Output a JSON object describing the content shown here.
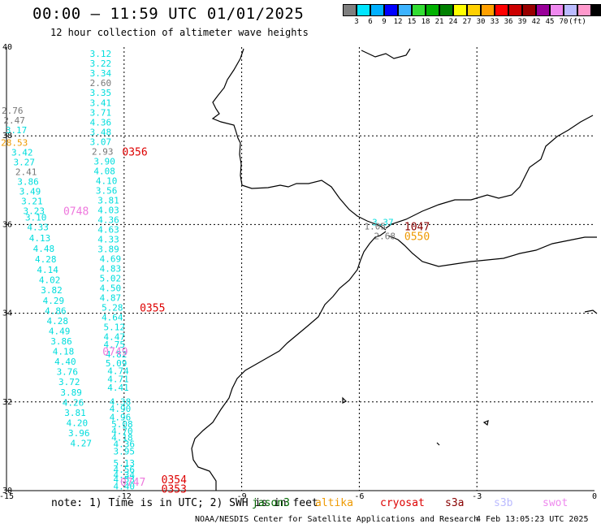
{
  "title": "00:00 – 11:59 UTC 01/01/2025",
  "subtitle": "12 hour collection of altimeter wave heights",
  "colorbar": {
    "colors": [
      "#7f7f7f",
      "#00e5ff",
      "#00b0ff",
      "#0000ff",
      "#3cb3ff",
      "#33dd33",
      "#00b000",
      "#008000",
      "#ffff00",
      "#ffd000",
      "#ffa000",
      "#ff0000",
      "#cc0000",
      "#990000",
      "#990099",
      "#ee88ee",
      "#bbbbff",
      "#ff99cc",
      "#000000"
    ],
    "labels": [
      "3",
      "6",
      "9",
      "12",
      "15",
      "18",
      "21",
      "24",
      "27",
      "30",
      "33",
      "36",
      "39",
      "42",
      "45",
      "70",
      "(ft)"
    ]
  },
  "axes": {
    "x_ticks": [
      "-15",
      "-12",
      "-9",
      "-6",
      "-3",
      "0"
    ],
    "y_ticks": [
      "40",
      "38",
      "36",
      "34",
      "32",
      "30"
    ]
  },
  "observations": [
    {
      "t": "3.12",
      "c": "#00dddd",
      "lon": -12.6,
      "lat": 39.85
    },
    {
      "t": "3.22",
      "c": "#00dddd",
      "lon": -12.6,
      "lat": 39.63
    },
    {
      "t": "3.34",
      "c": "#00dddd",
      "lon": -12.6,
      "lat": 39.41
    },
    {
      "t": "2.60",
      "c": "#777777",
      "lon": -12.6,
      "lat": 39.19
    },
    {
      "t": "3.35",
      "c": "#00dddd",
      "lon": -12.6,
      "lat": 38.97
    },
    {
      "t": "3.41",
      "c": "#00dddd",
      "lon": -12.6,
      "lat": 38.75
    },
    {
      "t": "3.71",
      "c": "#00dddd",
      "lon": -12.6,
      "lat": 38.53
    },
    {
      "t": "4.36",
      "c": "#00dddd",
      "lon": -12.6,
      "lat": 38.31
    },
    {
      "t": "3.48",
      "c": "#00dddd",
      "lon": -12.6,
      "lat": 38.09
    },
    {
      "t": "3.07",
      "c": "#00dddd",
      "lon": -12.6,
      "lat": 37.87
    },
    {
      "t": "2.93",
      "c": "#777777",
      "lon": -12.55,
      "lat": 37.65
    },
    {
      "t": "3.90",
      "c": "#00dddd",
      "lon": -12.5,
      "lat": 37.43
    },
    {
      "t": "4.08",
      "c": "#00dddd",
      "lon": -12.5,
      "lat": 37.21
    },
    {
      "t": "4.10",
      "c": "#00dddd",
      "lon": -12.45,
      "lat": 36.99
    },
    {
      "t": "3.56",
      "c": "#00dddd",
      "lon": -12.45,
      "lat": 36.77
    },
    {
      "t": "3.81",
      "c": "#00dddd",
      "lon": -12.4,
      "lat": 36.55
    },
    {
      "t": "4.03",
      "c": "#00dddd",
      "lon": -12.4,
      "lat": 36.33
    },
    {
      "t": "4.36",
      "c": "#00dddd",
      "lon": -12.4,
      "lat": 36.11
    },
    {
      "t": "4.63",
      "c": "#00dddd",
      "lon": -12.4,
      "lat": 35.89
    },
    {
      "t": "4.33",
      "c": "#00dddd",
      "lon": -12.4,
      "lat": 35.67
    },
    {
      "t": "3.89",
      "c": "#00dddd",
      "lon": -12.4,
      "lat": 35.45
    },
    {
      "t": "4.69",
      "c": "#00dddd",
      "lon": -12.35,
      "lat": 35.23
    },
    {
      "t": "4.83",
      "c": "#00dddd",
      "lon": -12.35,
      "lat": 35.01
    },
    {
      "t": "5.02",
      "c": "#00dddd",
      "lon": -12.35,
      "lat": 34.79
    },
    {
      "t": "4.50",
      "c": "#00dddd",
      "lon": -12.35,
      "lat": 34.57
    },
    {
      "t": "4.87",
      "c": "#00dddd",
      "lon": -12.35,
      "lat": 34.35
    },
    {
      "t": "5.28",
      "c": "#00dddd",
      "lon": -12.3,
      "lat": 34.13
    },
    {
      "t": "4.64",
      "c": "#00dddd",
      "lon": -12.3,
      "lat": 33.91
    },
    {
      "t": "5.12",
      "c": "#00dddd",
      "lon": -12.25,
      "lat": 33.69
    },
    {
      "t": "4.47",
      "c": "#00dddd",
      "lon": -12.25,
      "lat": 33.47
    },
    {
      "t": "4.75",
      "c": "#00dddd",
      "lon": -12.25,
      "lat": 33.3
    },
    {
      "t": "4.82",
      "c": "#00dddd",
      "lon": -12.2,
      "lat": 33.08
    },
    {
      "t": "5.09",
      "c": "#00dddd",
      "lon": -12.2,
      "lat": 32.88
    },
    {
      "t": "4.74",
      "c": "#00dddd",
      "lon": -12.15,
      "lat": 32.7
    },
    {
      "t": "4.71",
      "c": "#00dddd",
      "lon": -12.15,
      "lat": 32.52
    },
    {
      "t": "4.41",
      "c": "#00dddd",
      "lon": -12.15,
      "lat": 32.33
    },
    {
      "t": "4.38",
      "c": "#00dddd",
      "lon": -12.1,
      "lat": 32.01
    },
    {
      "t": "4.90",
      "c": "#00dddd",
      "lon": -12.1,
      "lat": 31.85
    },
    {
      "t": "4.96",
      "c": "#00dddd",
      "lon": -12.1,
      "lat": 31.66
    },
    {
      "t": "5.08",
      "c": "#00dddd",
      "lon": -12.05,
      "lat": 31.5
    },
    {
      "t": "4.70",
      "c": "#00dddd",
      "lon": -12.05,
      "lat": 31.35
    },
    {
      "t": "4.18",
      "c": "#00dddd",
      "lon": -12.05,
      "lat": 31.2
    },
    {
      "t": "4.36",
      "c": "#00dddd",
      "lon": -12.0,
      "lat": 31.05
    },
    {
      "t": "3.95",
      "c": "#00dddd",
      "lon": -12.0,
      "lat": 30.89
    },
    {
      "t": "5.13",
      "c": "#00dddd",
      "lon": -12.0,
      "lat": 30.62
    },
    {
      "t": "4.56",
      "c": "#00dddd",
      "lon": -12.0,
      "lat": 30.48
    },
    {
      "t": "4.34",
      "c": "#00dddd",
      "lon": -12.0,
      "lat": 30.36
    },
    {
      "t": "4.53",
      "c": "#00dddd",
      "lon": -12.0,
      "lat": 30.26
    },
    {
      "t": "4.40",
      "c": "#00dddd",
      "lon": -12.0,
      "lat": 30.1
    },
    {
      "t": "2.76",
      "c": "#777777",
      "lon": -14.85,
      "lat": 38.57
    },
    {
      "t": "2.47",
      "c": "#777777",
      "lon": -14.8,
      "lat": 38.35
    },
    {
      "t": "3.17",
      "c": "#00dddd",
      "lon": -14.75,
      "lat": 38.13
    },
    {
      "t": "28.53",
      "c": "#ee9900",
      "lon": -14.8,
      "lat": 37.85
    },
    {
      "t": "3.42",
      "c": "#00dddd",
      "lon": -14.6,
      "lat": 37.63
    },
    {
      "t": "3.27",
      "c": "#00dddd",
      "lon": -14.55,
      "lat": 37.41
    },
    {
      "t": "2.41",
      "c": "#777777",
      "lon": -14.5,
      "lat": 37.19
    },
    {
      "t": "3.86",
      "c": "#00dddd",
      "lon": -14.45,
      "lat": 36.97
    },
    {
      "t": "3.49",
      "c": "#00dddd",
      "lon": -14.4,
      "lat": 36.75
    },
    {
      "t": "3.21",
      "c": "#00dddd",
      "lon": -14.35,
      "lat": 36.53
    },
    {
      "t": "3.23",
      "c": "#00dddd",
      "lon": -14.3,
      "lat": 36.31
    },
    {
      "t": "3.10",
      "c": "#00dddd",
      "lon": -14.25,
      "lat": 36.16
    },
    {
      "t": "4.33",
      "c": "#00dddd",
      "lon": -14.2,
      "lat": 35.94
    },
    {
      "t": "4.13",
      "c": "#00dddd",
      "lon": -14.15,
      "lat": 35.7
    },
    {
      "t": "4.48",
      "c": "#00dddd",
      "lon": -14.05,
      "lat": 35.46
    },
    {
      "t": "4.28",
      "c": "#00dddd",
      "lon": -14.0,
      "lat": 35.22
    },
    {
      "t": "4.14",
      "c": "#00dddd",
      "lon": -13.95,
      "lat": 34.98
    },
    {
      "t": "4.02",
      "c": "#00dddd",
      "lon": -13.9,
      "lat": 34.75
    },
    {
      "t": "3.82",
      "c": "#00dddd",
      "lon": -13.85,
      "lat": 34.52
    },
    {
      "t": "4.29",
      "c": "#00dddd",
      "lon": -13.8,
      "lat": 34.29
    },
    {
      "t": "4.86",
      "c": "#00dddd",
      "lon": -13.75,
      "lat": 34.06
    },
    {
      "t": "4.28",
      "c": "#00dddd",
      "lon": -13.7,
      "lat": 33.83
    },
    {
      "t": "4.49",
      "c": "#00dddd",
      "lon": -13.65,
      "lat": 33.6
    },
    {
      "t": "3.86",
      "c": "#00dddd",
      "lon": -13.6,
      "lat": 33.37
    },
    {
      "t": "4.18",
      "c": "#00dddd",
      "lon": -13.55,
      "lat": 33.14
    },
    {
      "t": "4.40",
      "c": "#00dddd",
      "lon": -13.5,
      "lat": 32.91
    },
    {
      "t": "3.76",
      "c": "#00dddd",
      "lon": -13.45,
      "lat": 32.68
    },
    {
      "t": "3.72",
      "c": "#00dddd",
      "lon": -13.4,
      "lat": 32.45
    },
    {
      "t": "3.89",
      "c": "#00dddd",
      "lon": -13.35,
      "lat": 32.22
    },
    {
      "t": "4.26",
      "c": "#00dddd",
      "lon": -13.3,
      "lat": 31.99
    },
    {
      "t": "3.81",
      "c": "#00dddd",
      "lon": -13.25,
      "lat": 31.76
    },
    {
      "t": "4.20",
      "c": "#00dddd",
      "lon": -13.2,
      "lat": 31.53
    },
    {
      "t": "3.96",
      "c": "#00dddd",
      "lon": -13.15,
      "lat": 31.3
    },
    {
      "t": "4.27",
      "c": "#00dddd",
      "lon": -13.1,
      "lat": 31.07
    },
    {
      "t": "3.37",
      "c": "#00dddd",
      "lon": -5.4,
      "lat": 36.05
    },
    {
      "t": "1.05",
      "c": "#777777",
      "lon": -5.6,
      "lat": 35.96
    },
    {
      "t": "2.68",
      "c": "#777777",
      "lon": -5.35,
      "lat": 35.74
    }
  ],
  "pass_labels": [
    {
      "t": "0356",
      "c": "#dd0000",
      "lon": -12.05,
      "lat": 37.65
    },
    {
      "t": "0748",
      "c": "#ee77dd",
      "lon": -13.55,
      "lat": 36.31
    },
    {
      "t": "0355",
      "c": "#dd0000",
      "lon": -11.6,
      "lat": 34.13
    },
    {
      "t": "0749",
      "c": "#ee77dd",
      "lon": -12.55,
      "lat": 33.14
    },
    {
      "t": "0354",
      "c": "#dd0000",
      "lon": -11.05,
      "lat": 30.26
    },
    {
      "t": "0353",
      "c": "#dd0000",
      "lon": -11.05,
      "lat": 30.05
    },
    {
      "t": "0747",
      "c": "#ee77dd",
      "lon": -12.1,
      "lat": 30.2
    },
    {
      "t": "1047",
      "c": "#880000",
      "lon": -4.85,
      "lat": 35.96
    },
    {
      "t": "0550",
      "c": "#ee9900",
      "lon": -4.85,
      "lat": 35.74
    }
  ],
  "note": "note: 1) Time is in UTC; 2) SWH is in feet",
  "satellite_legend": [
    {
      "name": "jason3",
      "c": "#006600"
    },
    {
      "name": "altika",
      "c": "#ee9900"
    },
    {
      "name": "cryosat",
      "c": "#dd0000"
    },
    {
      "name": "s3a",
      "c": "#880000"
    },
    {
      "name": "s3b",
      "c": "#bbbbff"
    },
    {
      "name": "swot",
      "c": "#ee88ee"
    }
  ],
  "credit": "NOAA/NESDIS Center for Satellite Applications and Research",
  "timestamp": "4 Feb 13:05:23 UTC 2025"
}
